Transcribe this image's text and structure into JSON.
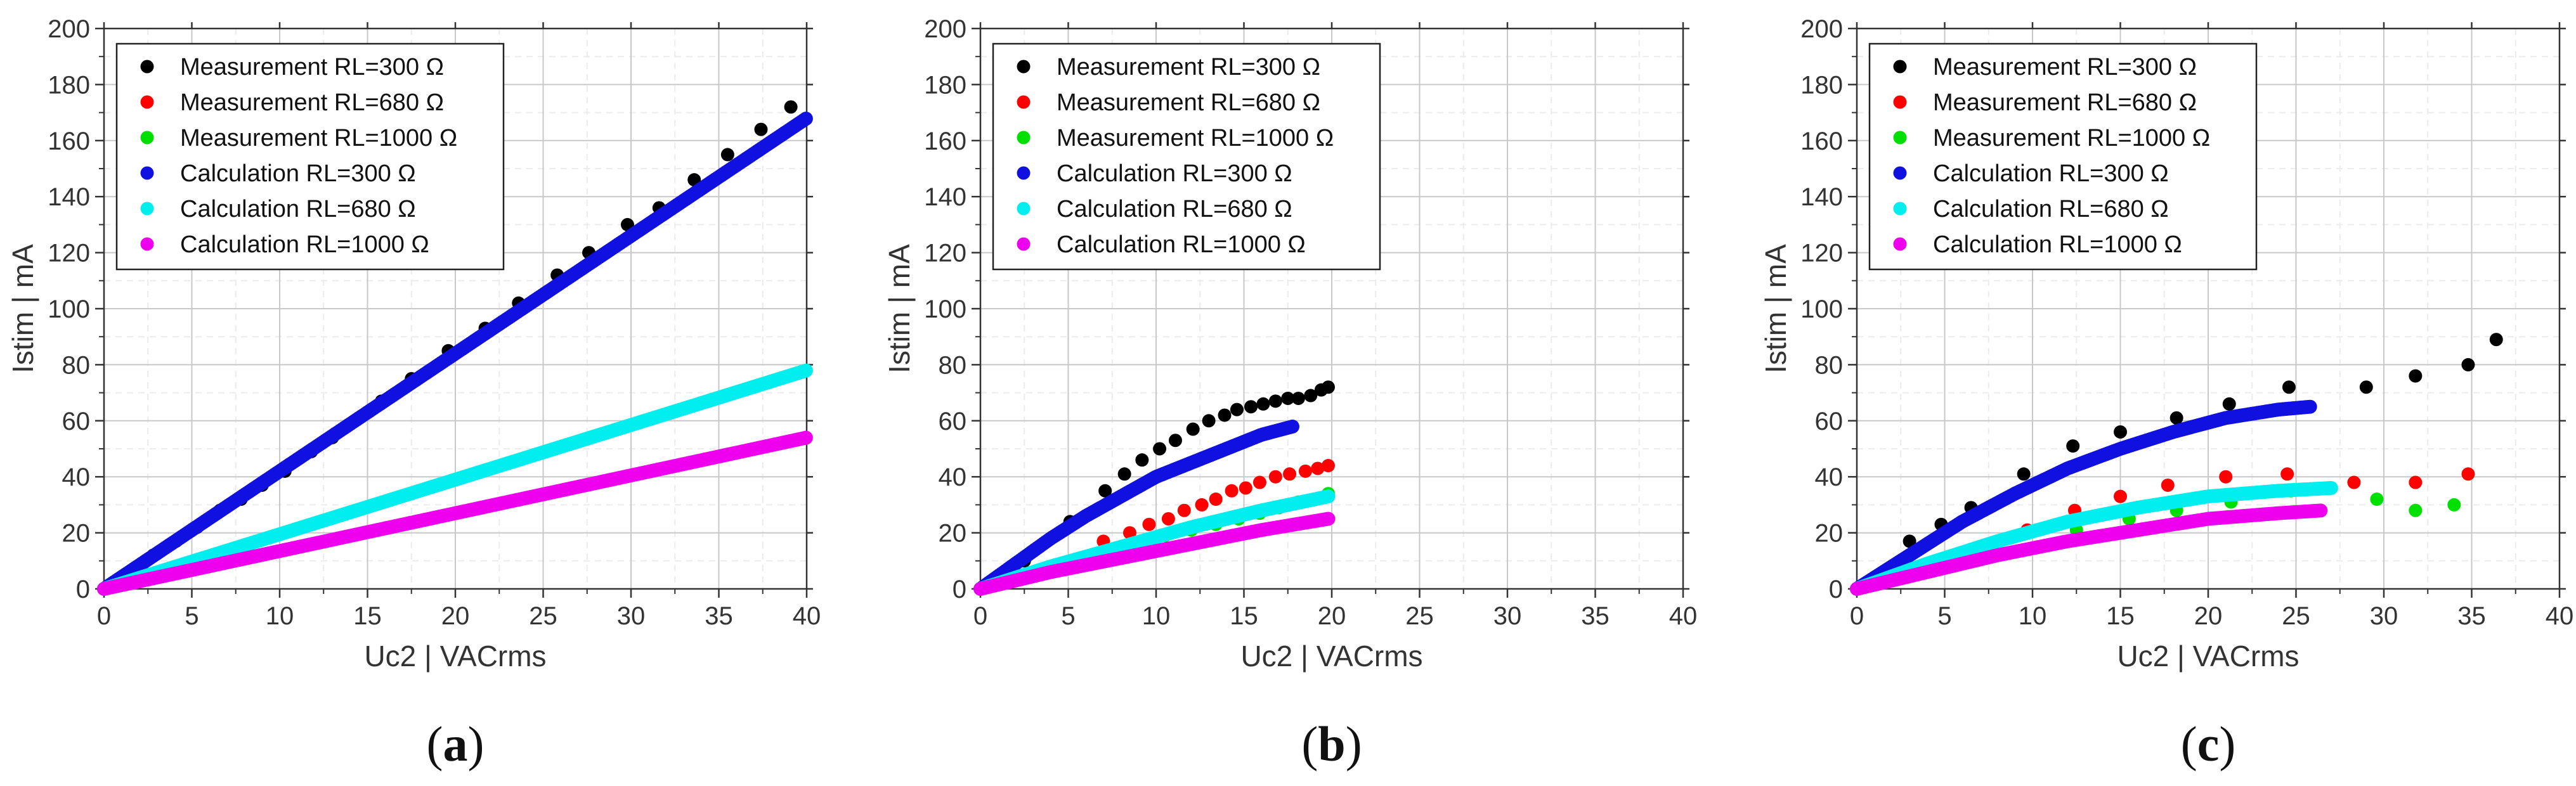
{
  "chart_data": [
    {
      "type": "scatter",
      "panel_label": "(a)",
      "panel_letter": "a",
      "xlabel": "Uc2 | VACrms",
      "ylabel": "Istim | mA",
      "xlim": [
        0,
        40
      ],
      "ylim": [
        0,
        200
      ],
      "xticks": [
        0,
        5,
        10,
        15,
        20,
        25,
        30,
        35,
        40
      ],
      "yticks": [
        0,
        20,
        40,
        60,
        80,
        100,
        120,
        140,
        160,
        180,
        200
      ],
      "grid": true,
      "legend_position": "top-left",
      "series": [
        {
          "name": "Measurement RL=300 Ω",
          "color": "#000000",
          "style": "points",
          "x": [
            1.5,
            2.8,
            4.1,
            5.3,
            6.6,
            7.8,
            9.0,
            10.3,
            11.8,
            13.0,
            14.3,
            15.8,
            17.5,
            19.6,
            21.7,
            23.6,
            25.8,
            27.6,
            29.8,
            31.6,
            33.6,
            35.5,
            37.4,
            39.1
          ],
          "y": [
            6,
            12,
            17,
            22,
            28,
            32,
            37,
            42,
            49,
            54,
            60,
            67,
            75,
            85,
            93,
            102,
            112,
            120,
            130,
            136,
            146,
            155,
            164,
            172
          ]
        },
        {
          "name": "Measurement RL=680 Ω",
          "color": "#ff0000",
          "style": "points",
          "x": [],
          "y": []
        },
        {
          "name": "Measurement RL=1000 Ω",
          "color": "#00e000",
          "style": "points",
          "x": [],
          "y": []
        },
        {
          "name": "Calculation RL=300 Ω",
          "color": "#1010e0",
          "style": "dense",
          "x": [
            0,
            40
          ],
          "y": [
            0,
            168
          ]
        },
        {
          "name": "Calculation RL=680 Ω",
          "color": "#00eeee",
          "style": "dense",
          "x": [
            0,
            40
          ],
          "y": [
            0,
            78
          ]
        },
        {
          "name": "Calculation RL=1000 Ω",
          "color": "#ee00ee",
          "style": "dense",
          "x": [
            0,
            40
          ],
          "y": [
            0,
            54
          ]
        }
      ]
    },
    {
      "type": "scatter",
      "panel_label": "(b)",
      "panel_letter": "b",
      "xlabel": "Uc2 | VACrms",
      "ylabel": "Istim | mA",
      "xlim": [
        0,
        40
      ],
      "ylim": [
        0,
        200
      ],
      "xticks": [
        0,
        5,
        10,
        15,
        20,
        25,
        30,
        35,
        40
      ],
      "yticks": [
        0,
        20,
        40,
        60,
        80,
        100,
        120,
        140,
        160,
        180,
        200
      ],
      "grid": true,
      "legend_position": "top-left",
      "series": [
        {
          "name": "Measurement RL=300 Ω",
          "color": "#000000",
          "style": "points",
          "x": [
            2.5,
            5.1,
            7.1,
            8.2,
            9.2,
            10.2,
            11.1,
            12.1,
            13.0,
            13.9,
            14.6,
            15.4,
            16.1,
            16.8,
            17.5,
            18.1,
            18.8,
            19.4,
            19.8
          ],
          "y": [
            10,
            24,
            35,
            41,
            46,
            50,
            53,
            57,
            60,
            62,
            64,
            65,
            66,
            67,
            68,
            68,
            69,
            71,
            72
          ]
        },
        {
          "name": "Measurement RL=680 Ω",
          "color": "#ff0000",
          "style": "points",
          "x": [
            7.0,
            8.5,
            9.6,
            10.7,
            11.6,
            12.6,
            13.4,
            14.3,
            15.1,
            15.9,
            16.8,
            17.6,
            18.5,
            19.2,
            19.8
          ],
          "y": [
            17,
            20,
            23,
            25,
            28,
            30,
            32,
            35,
            36,
            38,
            40,
            41,
            42,
            43,
            44
          ]
        },
        {
          "name": "Measurement RL=1000 Ω",
          "color": "#00e000",
          "style": "points",
          "x": [
            10.5,
            12.0,
            13.4,
            14.7,
            15.9,
            17.0,
            18.1,
            19.0,
            19.8
          ],
          "y": [
            19,
            21,
            23,
            25,
            27,
            29,
            31,
            32,
            34
          ]
        },
        {
          "name": "Calculation RL=300 Ω",
          "color": "#1010e0",
          "style": "dense",
          "x": [
            0,
            2,
            4,
            6,
            8,
            10,
            12,
            14,
            16,
            17.8
          ],
          "y": [
            0,
            9,
            18,
            26,
            33,
            40,
            45,
            50,
            55,
            58
          ]
        },
        {
          "name": "Calculation RL=680 Ω",
          "color": "#00eeee",
          "style": "dense",
          "x": [
            0,
            4,
            8,
            12,
            16,
            19.8
          ],
          "y": [
            0,
            8,
            15,
            22,
            28,
            33
          ]
        },
        {
          "name": "Calculation RL=1000 Ω",
          "color": "#ee00ee",
          "style": "dense",
          "x": [
            0,
            4,
            8,
            12,
            16,
            19.8
          ],
          "y": [
            0,
            6,
            11,
            16,
            21,
            25
          ]
        }
      ]
    },
    {
      "type": "scatter",
      "panel_label": "(c)",
      "panel_letter": "c",
      "xlabel": "Uc2 | VACrms",
      "ylabel": "Istim | mA",
      "xlim": [
        0,
        40
      ],
      "ylim": [
        0,
        200
      ],
      "xticks": [
        0,
        5,
        10,
        15,
        20,
        25,
        30,
        35,
        40
      ],
      "yticks": [
        0,
        20,
        40,
        60,
        80,
        100,
        120,
        140,
        160,
        180,
        200
      ],
      "grid": true,
      "legend_position": "top-left",
      "series": [
        {
          "name": "Measurement RL=300 Ω",
          "color": "#000000",
          "style": "points",
          "x": [
            3.0,
            4.8,
            6.5,
            9.5,
            12.3,
            15.0,
            18.2,
            21.2,
            24.6,
            29.0,
            31.8,
            34.8,
            36.4
          ],
          "y": [
            17,
            23,
            29,
            41,
            51,
            56,
            61,
            66,
            72,
            72,
            76,
            80,
            89
          ]
        },
        {
          "name": "Measurement RL=680 Ω",
          "color": "#ff0000",
          "style": "points",
          "x": [
            7.0,
            9.7,
            12.4,
            15.0,
            17.7,
            21.0,
            24.5,
            28.3,
            31.8,
            34.8
          ],
          "y": [
            15,
            21,
            28,
            33,
            37,
            40,
            41,
            38,
            38,
            41
          ]
        },
        {
          "name": "Measurement RL=1000 Ω",
          "color": "#00e000",
          "style": "points",
          "x": [
            12.5,
            15.5,
            18.2,
            21.3,
            24.7,
            29.6,
            31.8,
            34.0
          ],
          "y": [
            21,
            25,
            28,
            31,
            35,
            32,
            28,
            30
          ]
        },
        {
          "name": "Calculation RL=300 Ω",
          "color": "#1010e0",
          "style": "dense",
          "x": [
            0,
            3,
            6,
            9,
            12,
            15,
            18,
            21,
            24,
            25.8
          ],
          "y": [
            0,
            12,
            24,
            34,
            43,
            50,
            56,
            61,
            64,
            65
          ]
        },
        {
          "name": "Calculation RL=680 Ω",
          "color": "#00eeee",
          "style": "dense",
          "x": [
            0,
            4,
            8,
            12,
            16,
            20,
            24,
            27.0
          ],
          "y": [
            0,
            9,
            17,
            24,
            29,
            33,
            35,
            36
          ]
        },
        {
          "name": "Calculation RL=1000 Ω",
          "color": "#ee00ee",
          "style": "dense",
          "x": [
            0,
            4,
            8,
            12,
            16,
            20,
            24,
            26.5
          ],
          "y": [
            0,
            6,
            12,
            17,
            21,
            25,
            27,
            28
          ]
        }
      ]
    }
  ]
}
